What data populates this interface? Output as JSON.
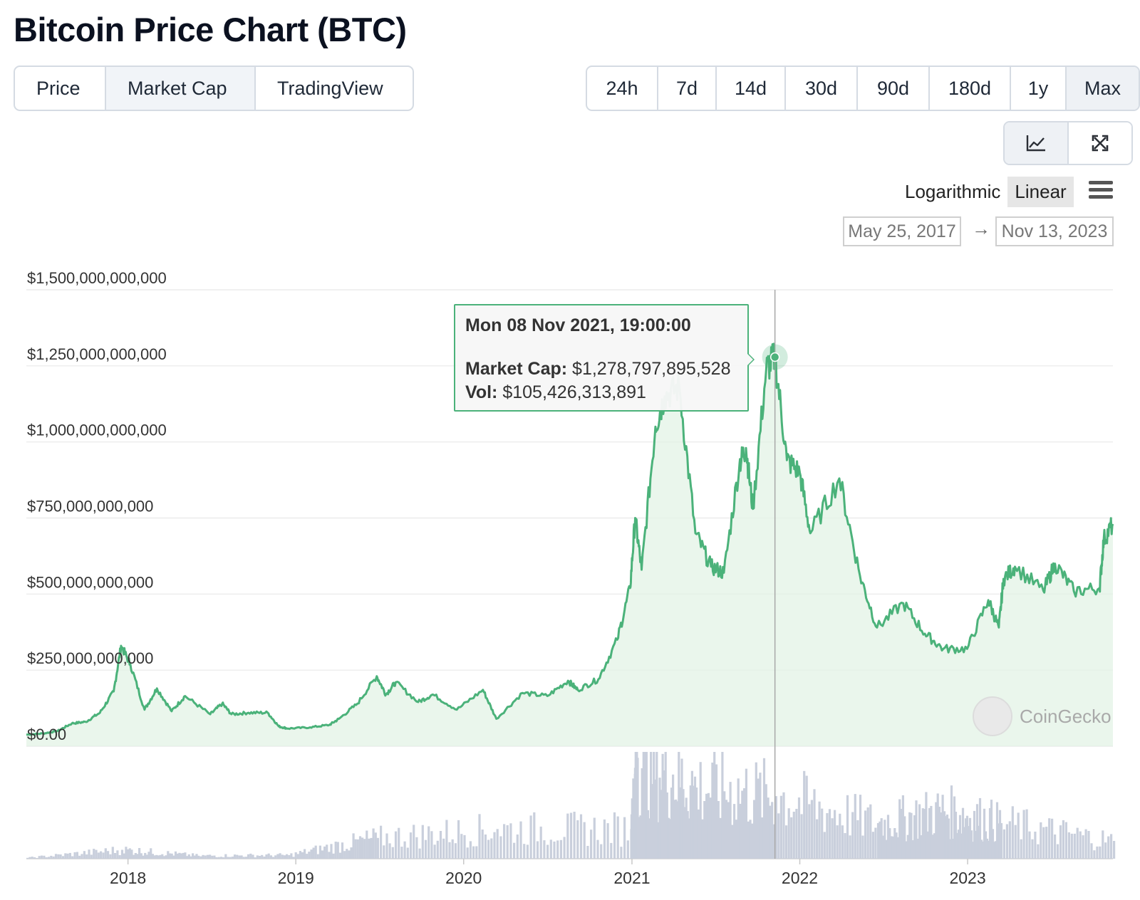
{
  "page": {
    "title": "Bitcoin Price Chart (BTC)"
  },
  "tabs": [
    {
      "label": "Price"
    },
    {
      "label": "Market Cap",
      "active": true
    },
    {
      "label": "TradingView"
    }
  ],
  "ranges": [
    {
      "label": "24h"
    },
    {
      "label": "7d"
    },
    {
      "label": "14d"
    },
    {
      "label": "30d"
    },
    {
      "label": "90d"
    },
    {
      "label": "180d"
    },
    {
      "label": "1y"
    },
    {
      "label": "Max",
      "active": true
    }
  ],
  "view_buttons": [
    {
      "icon": "line-chart-icon",
      "active": true
    },
    {
      "icon": "fullscreen-icon"
    }
  ],
  "scale": {
    "log_label": "Logarithmic",
    "linear_label": "Linear",
    "selected": "Linear"
  },
  "date_range": {
    "from": "May 25, 2017",
    "arrow": "→",
    "to": "Nov 13, 2023"
  },
  "tooltip": {
    "date": "Mon 08 Nov 2021, 19:00:00",
    "market_cap_label": "Market Cap:",
    "market_cap_value": "$1,278,797,895,528",
    "vol_label": "Vol:",
    "vol_value": "$105,426,313,891"
  },
  "watermark": "CoinGecko",
  "colors": {
    "line": "#4bb27a",
    "area": "#e3f3e6",
    "volume": "#c9cfdc",
    "grid": "#e8e8e8"
  },
  "chart_data": {
    "type": "area",
    "title": "",
    "xlabel": "",
    "ylabel": "",
    "ylim": [
      0,
      1500000000000
    ],
    "xlim": [
      "2017-05-25",
      "2023-11-13"
    ],
    "log_scale": false,
    "grid": true,
    "y_ticks": [
      "$0.00",
      "$250,000,000,000",
      "$500,000,000,000",
      "$750,000,000,000",
      "$1,000,000,000,000",
      "$1,250,000,000,000",
      "$1,500,000,000,000"
    ],
    "x_ticks": [
      "2018",
      "2019",
      "2020",
      "2021",
      "2022",
      "2023"
    ],
    "series": [
      {
        "name": "Market Cap",
        "points": [
          [
            "2017-05-25",
            38000000000
          ],
          [
            "2017-07-01",
            42000000000
          ],
          [
            "2017-08-01",
            50000000000
          ],
          [
            "2017-09-01",
            75000000000
          ],
          [
            "2017-10-01",
            80000000000
          ],
          [
            "2017-11-01",
            110000000000
          ],
          [
            "2017-12-01",
            180000000000
          ],
          [
            "2017-12-17",
            330000000000
          ],
          [
            "2018-01-06",
            270000000000
          ],
          [
            "2018-02-06",
            120000000000
          ],
          [
            "2018-03-05",
            190000000000
          ],
          [
            "2018-04-06",
            115000000000
          ],
          [
            "2018-05-05",
            165000000000
          ],
          [
            "2018-06-29",
            105000000000
          ],
          [
            "2018-07-25",
            140000000000
          ],
          [
            "2018-08-14",
            105000000000
          ],
          [
            "2018-09-20",
            110000000000
          ],
          [
            "2018-11-01",
            110000000000
          ],
          [
            "2018-11-25",
            65000000000
          ],
          [
            "2018-12-15",
            58000000000
          ],
          [
            "2019-02-01",
            62000000000
          ],
          [
            "2019-03-15",
            70000000000
          ],
          [
            "2019-04-05",
            90000000000
          ],
          [
            "2019-05-15",
            140000000000
          ],
          [
            "2019-06-26",
            230000000000
          ],
          [
            "2019-07-16",
            170000000000
          ],
          [
            "2019-08-06",
            210000000000
          ],
          [
            "2019-09-24",
            145000000000
          ],
          [
            "2019-10-26",
            170000000000
          ],
          [
            "2019-12-17",
            120000000000
          ],
          [
            "2020-02-12",
            185000000000
          ],
          [
            "2020-03-12",
            90000000000
          ],
          [
            "2020-05-08",
            175000000000
          ],
          [
            "2020-07-01",
            165000000000
          ],
          [
            "2020-08-15",
            215000000000
          ],
          [
            "2020-09-05",
            185000000000
          ],
          [
            "2020-10-20",
            220000000000
          ],
          [
            "2020-11-30",
            350000000000
          ],
          [
            "2020-12-28",
            520000000000
          ],
          [
            "2021-01-08",
            750000000000
          ],
          [
            "2021-01-22",
            580000000000
          ],
          [
            "2021-02-21",
            1050000000000
          ],
          [
            "2021-03-13",
            1150000000000
          ],
          [
            "2021-04-14",
            1180000000000
          ],
          [
            "2021-05-19",
            700000000000
          ],
          [
            "2021-06-22",
            590000000000
          ],
          [
            "2021-07-20",
            570000000000
          ],
          [
            "2021-08-23",
            930000000000
          ],
          [
            "2021-09-06",
            980000000000
          ],
          [
            "2021-09-21",
            780000000000
          ],
          [
            "2021-10-20",
            1240000000000
          ],
          [
            "2021-11-08",
            1278797895528
          ],
          [
            "2021-12-04",
            940000000000
          ],
          [
            "2022-01-01",
            900000000000
          ],
          [
            "2022-01-24",
            700000000000
          ],
          [
            "2022-03-28",
            880000000000
          ],
          [
            "2022-05-12",
            560000000000
          ],
          [
            "2022-06-18",
            390000000000
          ],
          [
            "2022-08-14",
            470000000000
          ],
          [
            "2022-09-30",
            370000000000
          ],
          [
            "2022-11-09",
            320000000000
          ],
          [
            "2022-12-31",
            320000000000
          ],
          [
            "2023-02-15",
            480000000000
          ],
          [
            "2023-03-10",
            390000000000
          ],
          [
            "2023-03-20",
            550000000000
          ],
          [
            "2023-04-14",
            590000000000
          ],
          [
            "2023-06-15",
            510000000000
          ],
          [
            "2023-07-10",
            600000000000
          ],
          [
            "2023-08-20",
            510000000000
          ],
          [
            "2023-10-15",
            520000000000
          ],
          [
            "2023-10-24",
            680000000000
          ],
          [
            "2023-11-13",
            730000000000
          ]
        ]
      },
      {
        "name": "Vol",
        "points": [
          [
            "2017-05-25",
            1500000000
          ],
          [
            "2017-12-17",
            15000000000
          ],
          [
            "2018-06-01",
            5000000000
          ],
          [
            "2018-12-15",
            6000000000
          ],
          [
            "2019-06-26",
            35000000000
          ],
          [
            "2020-03-12",
            50000000000
          ],
          [
            "2020-12-28",
            50000000000
          ],
          [
            "2021-01-11",
            170000000000
          ],
          [
            "2021-05-19",
            120000000000
          ],
          [
            "2021-11-08",
            105426313891
          ],
          [
            "2022-06-18",
            60000000000
          ],
          [
            "2022-11-09",
            80000000000
          ],
          [
            "2023-03-13",
            60000000000
          ],
          [
            "2023-11-13",
            30000000000
          ]
        ]
      }
    ],
    "highlight": {
      "date": "2021-11-08",
      "value": 1278797895528
    }
  }
}
